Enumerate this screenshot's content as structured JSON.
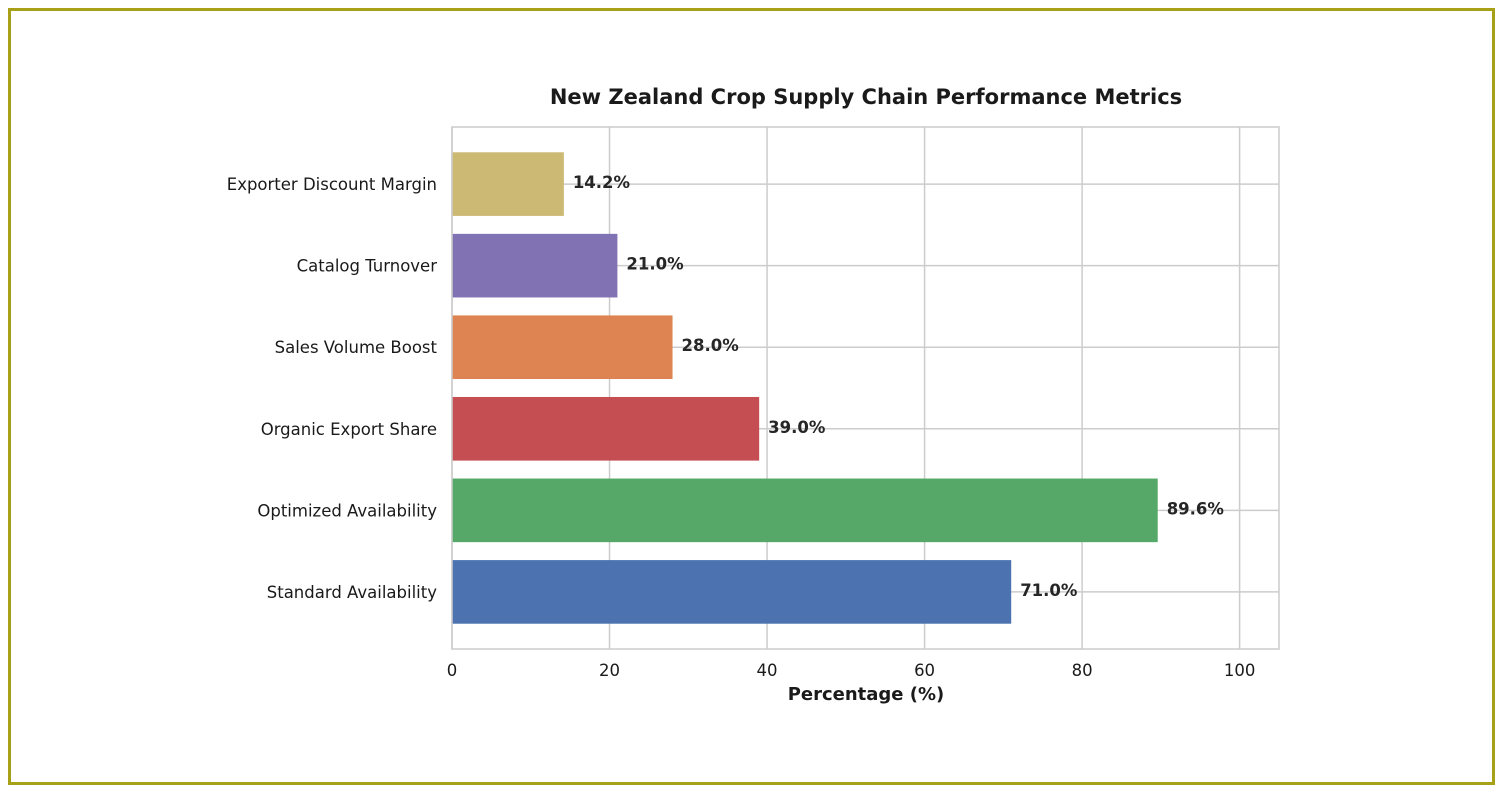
{
  "chart_data": {
    "type": "bar",
    "orientation": "horizontal",
    "title": "New Zealand Crop Supply Chain Performance Metrics",
    "xlabel": "Percentage (%)",
    "ylabel": "",
    "xlim": [
      0,
      105
    ],
    "xticks": [
      0,
      20,
      40,
      60,
      80,
      100
    ],
    "grid": true,
    "categories": [
      "Standard Availability",
      "Optimized Availability",
      "Organic Export Share",
      "Sales Volume Boost",
      "Catalog Turnover",
      "Exporter Discount Margin"
    ],
    "values": [
      71.0,
      89.6,
      39.0,
      28.0,
      21.0,
      14.2
    ],
    "value_labels": [
      "71.0%",
      "89.6%",
      "39.0%",
      "28.0%",
      "21.0%",
      "14.2%"
    ],
    "colors": [
      "#4c72b0",
      "#55a868",
      "#c44e52",
      "#dd8452",
      "#8172b3",
      "#ccb974"
    ]
  },
  "frame_color": "#a8a016"
}
